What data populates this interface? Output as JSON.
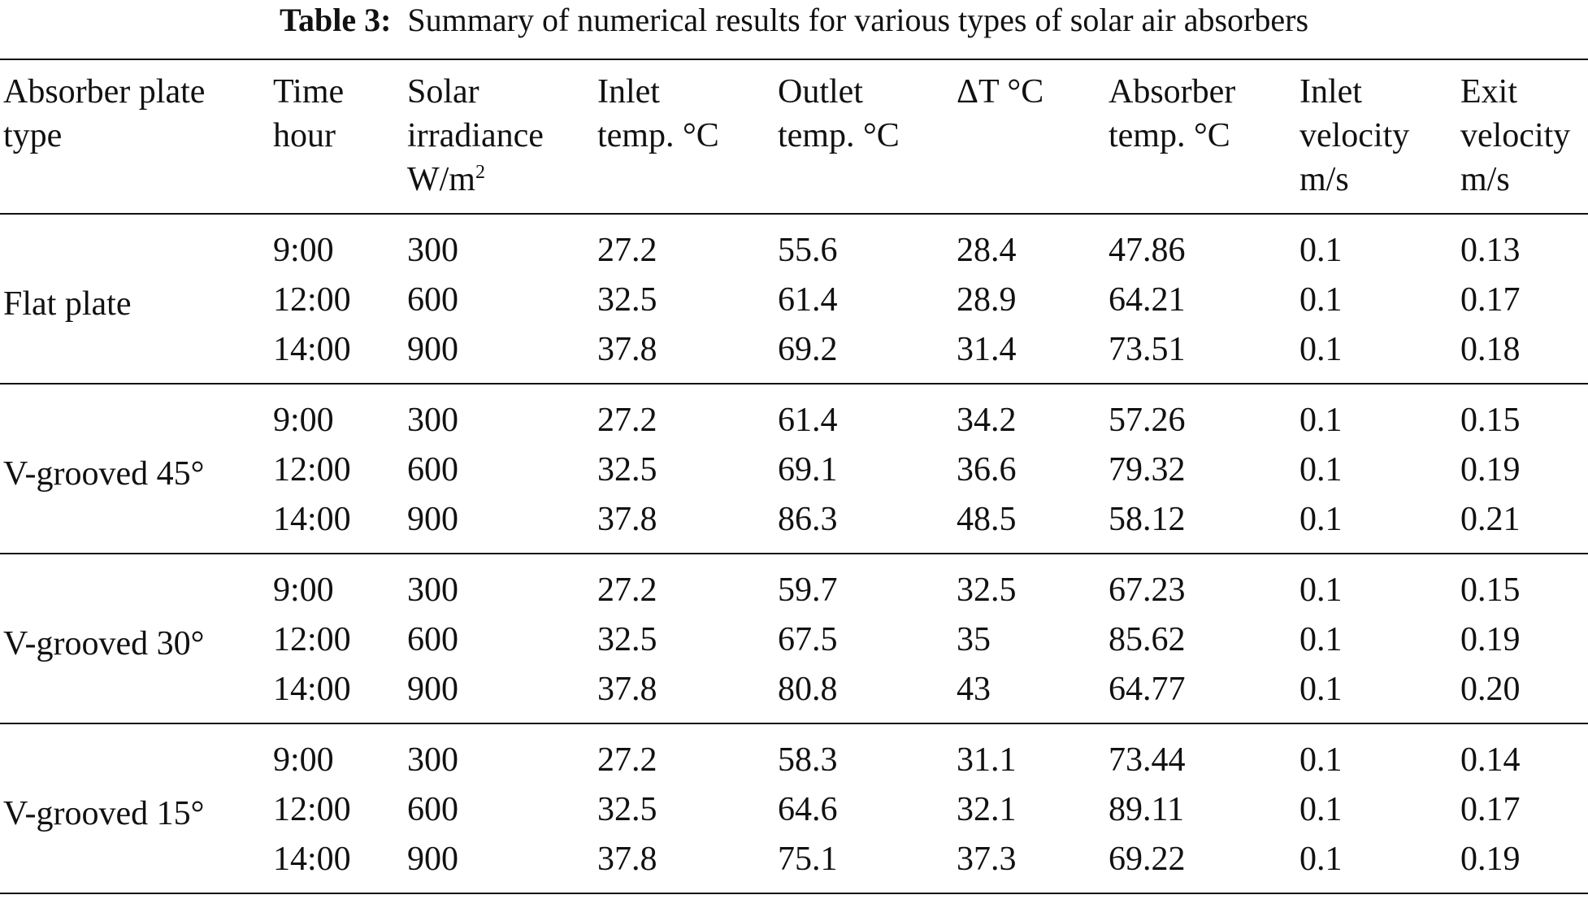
{
  "caption": {
    "label": "Table 3:",
    "text": "Summary of numerical results for various types of solar air absorbers"
  },
  "headers": {
    "absorber_type": [
      "Absorber plate",
      "type"
    ],
    "time": [
      "Time",
      "hour"
    ],
    "irradiance": [
      "Solar",
      "irradiance",
      "W/m",
      "2"
    ],
    "inlet_temp": [
      "Inlet",
      "temp. °C"
    ],
    "outlet_temp": [
      "Outlet",
      "temp. °C"
    ],
    "delta_t": [
      "ΔT °C"
    ],
    "absorber_temp": [
      "Absorber",
      "temp. °C"
    ],
    "inlet_velocity": [
      "Inlet",
      "velocity",
      "m/s"
    ],
    "exit_velocity": [
      "Exit",
      "velocity",
      "m/s"
    ]
  },
  "groups": [
    {
      "type": "Flat plate",
      "rows": [
        {
          "time": "9:00",
          "irradiance": "300",
          "inlet": "27.2",
          "outlet": "55.6",
          "delta": "28.4",
          "absorber": "47.86",
          "vin": "0.1",
          "vout": "0.13"
        },
        {
          "time": "12:00",
          "irradiance": "600",
          "inlet": "32.5",
          "outlet": "61.4",
          "delta": "28.9",
          "absorber": "64.21",
          "vin": "0.1",
          "vout": "0.17"
        },
        {
          "time": "14:00",
          "irradiance": "900",
          "inlet": "37.8",
          "outlet": "69.2",
          "delta": "31.4",
          "absorber": "73.51",
          "vin": "0.1",
          "vout": "0.18"
        }
      ]
    },
    {
      "type": "V-grooved 45°",
      "rows": [
        {
          "time": "9:00",
          "irradiance": "300",
          "inlet": "27.2",
          "outlet": "61.4",
          "delta": "34.2",
          "absorber": "57.26",
          "vin": "0.1",
          "vout": "0.15"
        },
        {
          "time": "12:00",
          "irradiance": "600",
          "inlet": "32.5",
          "outlet": "69.1",
          "delta": "36.6",
          "absorber": "79.32",
          "vin": "0.1",
          "vout": "0.19"
        },
        {
          "time": "14:00",
          "irradiance": "900",
          "inlet": "37.8",
          "outlet": "86.3",
          "delta": "48.5",
          "absorber": "58.12",
          "vin": "0.1",
          "vout": "0.21"
        }
      ]
    },
    {
      "type": "V-grooved 30°",
      "rows": [
        {
          "time": "9:00",
          "irradiance": "300",
          "inlet": "27.2",
          "outlet": "59.7",
          "delta": "32.5",
          "absorber": "67.23",
          "vin": "0.1",
          "vout": "0.15"
        },
        {
          "time": "12:00",
          "irradiance": "600",
          "inlet": "32.5",
          "outlet": "67.5",
          "delta": "35",
          "absorber": "85.62",
          "vin": "0.1",
          "vout": "0.19"
        },
        {
          "time": "14:00",
          "irradiance": "900",
          "inlet": "37.8",
          "outlet": "80.8",
          "delta": "43",
          "absorber": "64.77",
          "vin": "0.1",
          "vout": "0.20"
        }
      ]
    },
    {
      "type": "V-grooved 15°",
      "rows": [
        {
          "time": "9:00",
          "irradiance": "300",
          "inlet": "27.2",
          "outlet": "58.3",
          "delta": "31.1",
          "absorber": "73.44",
          "vin": "0.1",
          "vout": "0.14"
        },
        {
          "time": "12:00",
          "irradiance": "600",
          "inlet": "32.5",
          "outlet": "64.6",
          "delta": "32.1",
          "absorber": "89.11",
          "vin": "0.1",
          "vout": "0.17"
        },
        {
          "time": "14:00",
          "irradiance": "900",
          "inlet": "37.8",
          "outlet": "75.1",
          "delta": "37.3",
          "absorber": "69.22",
          "vin": "0.1",
          "vout": "0.19"
        }
      ]
    }
  ]
}
